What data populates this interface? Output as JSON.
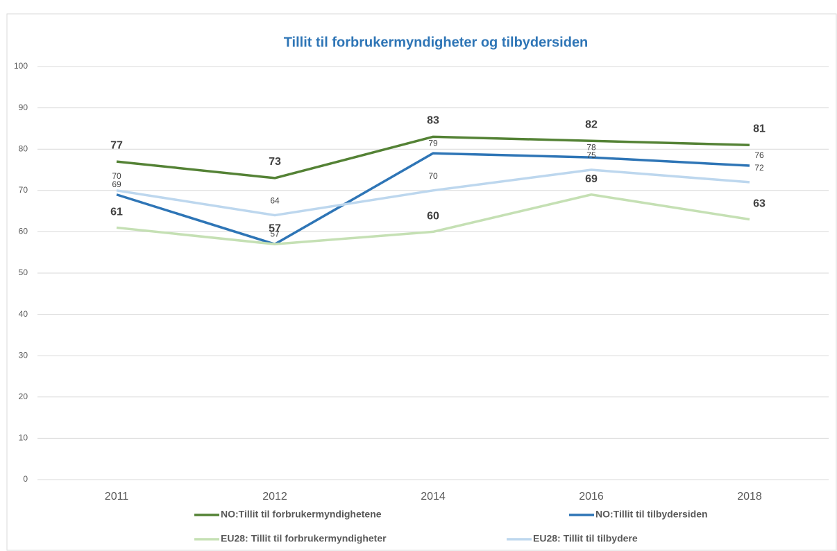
{
  "chart_data": {
    "type": "line",
    "title": "Tillit til forbrukermyndigheter  og tilbydersiden",
    "categories": [
      "2011",
      "2012",
      "2014",
      "2016",
      "2018"
    ],
    "series": [
      {
        "name": "NO:Tillit til forbrukermyndighetene",
        "color": "#548235",
        "values": [
          77,
          73,
          83,
          82,
          81
        ]
      },
      {
        "name": "NO:Tillit til tilbydersiden",
        "color": "#2e75b6",
        "values": [
          69,
          57,
          79,
          78,
          76
        ]
      },
      {
        "name": "EU28: Tillit til forbrukermyndigheter",
        "color": "#c5e0b4",
        "values": [
          61,
          57,
          60,
          69,
          63
        ]
      },
      {
        "name": "EU28: Tillit til tilbydere",
        "color": "#bdd7ee",
        "values": [
          70,
          64,
          70,
          75,
          72
        ]
      }
    ],
    "ylim": [
      0,
      100
    ],
    "yticks": [
      0,
      10,
      20,
      30,
      40,
      50,
      60,
      70,
      80,
      90,
      100
    ],
    "grid": true
  }
}
